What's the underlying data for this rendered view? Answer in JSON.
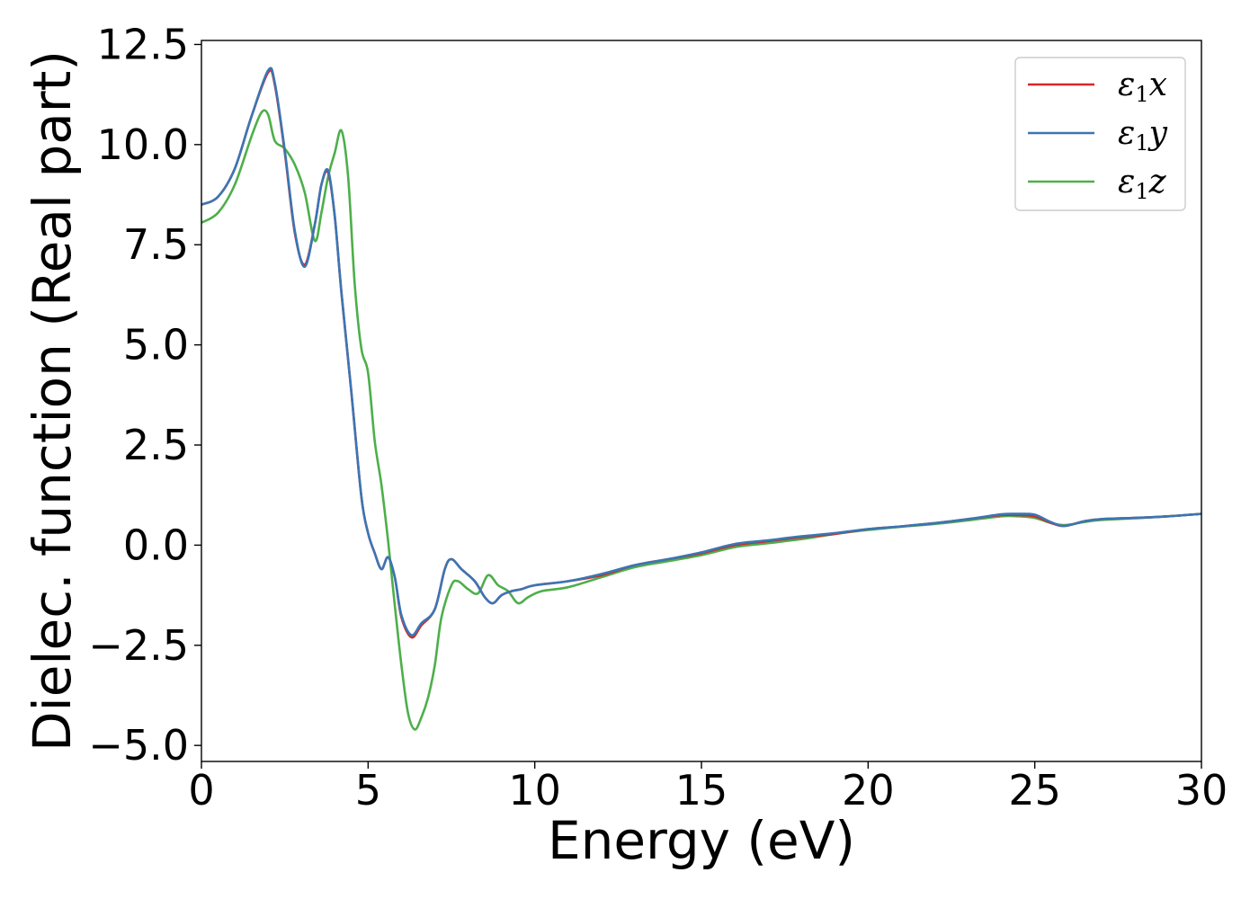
{
  "chart_data": {
    "type": "line",
    "xlabel": "Energy (eV)",
    "ylabel": "Dielec. function (Real part)",
    "xlim": [
      0,
      30
    ],
    "ylim": [
      -5.4,
      12.6
    ],
    "xticks": [
      0,
      5,
      10,
      15,
      20,
      25,
      30
    ],
    "xtick_labels": [
      "0",
      "5",
      "10",
      "15",
      "20",
      "25",
      "30"
    ],
    "yticks": [
      -5.0,
      -2.5,
      0.0,
      2.5,
      5.0,
      7.5,
      10.0,
      12.5
    ],
    "ytick_labels": [
      "−5.0",
      "−2.5",
      "0.0",
      "2.5",
      "5.0",
      "7.5",
      "10.0",
      "12.5"
    ],
    "grid": false,
    "legend_position": "top-right",
    "series": [
      {
        "name": "ε1x",
        "color": "#d62728",
        "x": [
          0,
          0.5,
          1.0,
          1.5,
          2.0,
          2.2,
          2.5,
          2.8,
          3.1,
          3.4,
          3.6,
          3.8,
          4.0,
          4.2,
          4.5,
          4.8,
          5.0,
          5.2,
          5.4,
          5.6,
          5.8,
          6.0,
          6.3,
          6.6,
          7.0,
          7.3,
          7.5,
          7.8,
          8.2,
          8.5,
          8.75,
          9.0,
          9.3,
          9.6,
          10.0,
          11.0,
          12.0,
          13.0,
          14.0,
          15.0,
          16.0,
          17.0,
          18.0,
          19.0,
          20.0,
          21.0,
          22.0,
          23.0,
          24.0,
          24.5,
          25.0,
          25.5,
          25.9,
          26.5,
          27.0,
          28.0,
          29.0,
          30.0
        ],
        "y": [
          8.5,
          8.7,
          9.4,
          10.7,
          11.8,
          11.5,
          9.8,
          7.8,
          7.0,
          8.0,
          9.0,
          9.3,
          8.2,
          6.3,
          3.8,
          1.2,
          0.3,
          -0.2,
          -0.6,
          -0.3,
          -0.8,
          -1.8,
          -2.3,
          -2.0,
          -1.6,
          -0.6,
          -0.35,
          -0.6,
          -0.9,
          -1.3,
          -1.45,
          -1.25,
          -1.15,
          -1.1,
          -1.0,
          -0.9,
          -0.75,
          -0.5,
          -0.35,
          -0.2,
          0.0,
          0.1,
          0.2,
          0.28,
          0.4,
          0.47,
          0.55,
          0.65,
          0.75,
          0.75,
          0.72,
          0.55,
          0.48,
          0.6,
          0.65,
          0.68,
          0.72,
          0.78
        ]
      },
      {
        "name": "ε1y",
        "color": "#3a76b5",
        "x": [
          0,
          0.5,
          1.0,
          1.5,
          2.0,
          2.2,
          2.5,
          2.8,
          3.1,
          3.4,
          3.6,
          3.8,
          4.0,
          4.2,
          4.5,
          4.8,
          5.0,
          5.2,
          5.4,
          5.6,
          5.8,
          6.0,
          6.3,
          6.6,
          7.0,
          7.3,
          7.5,
          7.8,
          8.2,
          8.5,
          8.75,
          9.0,
          9.3,
          9.6,
          10.0,
          11.0,
          12.0,
          13.0,
          14.0,
          15.0,
          16.0,
          17.0,
          18.0,
          19.0,
          20.0,
          21.0,
          22.0,
          23.0,
          24.0,
          24.5,
          25.0,
          25.5,
          25.9,
          26.5,
          27.0,
          28.0,
          29.0,
          30.0
        ],
        "y": [
          8.5,
          8.7,
          9.4,
          10.7,
          11.85,
          11.55,
          9.85,
          7.85,
          6.95,
          8.0,
          9.0,
          9.35,
          8.2,
          6.3,
          3.8,
          1.2,
          0.3,
          -0.2,
          -0.6,
          -0.3,
          -0.8,
          -1.75,
          -2.25,
          -1.95,
          -1.6,
          -0.6,
          -0.35,
          -0.6,
          -0.9,
          -1.3,
          -1.45,
          -1.25,
          -1.15,
          -1.1,
          -1.0,
          -0.9,
          -0.72,
          -0.5,
          -0.35,
          -0.18,
          0.03,
          0.12,
          0.22,
          0.3,
          0.4,
          0.47,
          0.55,
          0.65,
          0.77,
          0.78,
          0.76,
          0.57,
          0.48,
          0.6,
          0.65,
          0.68,
          0.72,
          0.78
        ]
      },
      {
        "name": "ε1z",
        "color": "#4daf4a",
        "x": [
          0,
          0.5,
          1.0,
          1.5,
          1.8,
          2.0,
          2.2,
          2.5,
          2.8,
          3.1,
          3.4,
          3.6,
          3.8,
          4.0,
          4.2,
          4.4,
          4.6,
          4.8,
          5.0,
          5.2,
          5.4,
          5.6,
          5.8,
          6.0,
          6.2,
          6.4,
          6.6,
          6.8,
          7.0,
          7.2,
          7.5,
          7.7,
          8.0,
          8.3,
          8.6,
          8.9,
          9.2,
          9.5,
          9.8,
          10.2,
          11.0,
          12.0,
          13.0,
          14.0,
          15.0,
          16.0,
          17.0,
          18.0,
          19.0,
          20.0,
          21.0,
          22.0,
          23.0,
          24.0,
          24.5,
          25.0,
          25.5,
          25.9,
          26.5,
          27.0,
          28.0,
          29.0,
          30.0
        ],
        "y": [
          8.05,
          8.3,
          9.0,
          10.2,
          10.8,
          10.75,
          10.1,
          9.9,
          9.5,
          8.8,
          7.6,
          8.3,
          9.2,
          9.8,
          10.35,
          9.2,
          6.5,
          4.9,
          4.3,
          2.6,
          1.5,
          0.1,
          -1.5,
          -3.0,
          -4.2,
          -4.6,
          -4.3,
          -3.8,
          -3.0,
          -1.8,
          -1.0,
          -0.9,
          -1.1,
          -1.2,
          -0.75,
          -1.0,
          -1.15,
          -1.45,
          -1.3,
          -1.15,
          -1.05,
          -0.8,
          -0.55,
          -0.4,
          -0.25,
          -0.05,
          0.05,
          0.15,
          0.28,
          0.38,
          0.46,
          0.53,
          0.62,
          0.72,
          0.72,
          0.68,
          0.55,
          0.5,
          0.58,
          0.63,
          0.67,
          0.72,
          0.78
        ]
      }
    ]
  }
}
